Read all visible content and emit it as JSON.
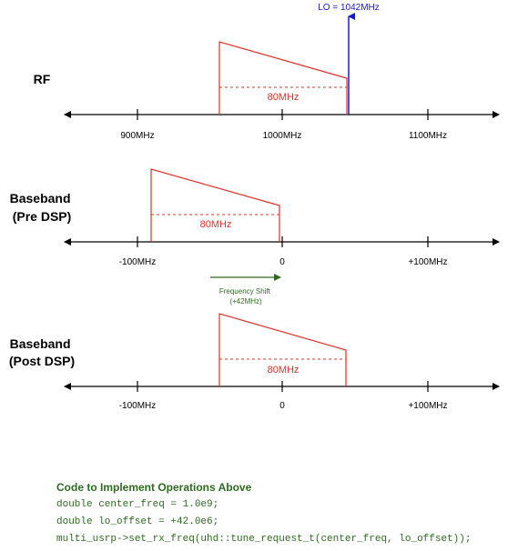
{
  "colors": {
    "axis": "#000000",
    "spectrum": "#e0302a",
    "lo": "#1a1acc",
    "shift": "#2e6b1f",
    "code": "#2e6b1f"
  },
  "sections": {
    "rf": {
      "label_lines": [
        "RF"
      ],
      "ticks": [
        "900MHz",
        "1000MHz",
        "1100MHz"
      ],
      "bandwidth_label": "80MHz"
    },
    "pre": {
      "label_lines": [
        "Baseband",
        "(Pre DSP)"
      ],
      "ticks": [
        "-100MHz",
        "0",
        "+100MHz"
      ],
      "bandwidth_label": "80MHz"
    },
    "post": {
      "label_lines": [
        "Baseband",
        "(Post DSP)"
      ],
      "ticks": [
        "-100MHz",
        "0",
        "+100MHz"
      ],
      "bandwidth_label": "80MHz"
    }
  },
  "lo": {
    "label": "LO = 1042MHz",
    "frequency_mhz": 1042
  },
  "shift": {
    "label_lines": [
      "Frequency Shift",
      "(+42MHz)"
    ]
  },
  "code": {
    "title": "Code to Implement Operations Above",
    "lines": [
      "double center_freq = 1.0e9;",
      "double lo_offset = +42.0e6;",
      "multi_usrp->set_rx_freq(uhd::tune_request_t(center_freq, lo_offset));"
    ]
  }
}
